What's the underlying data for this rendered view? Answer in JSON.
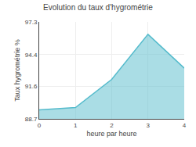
{
  "chart_data": {
    "type": "area",
    "title": "Evolution du taux d'hygrométrie",
    "xlabel": "heure par heure",
    "ylabel": "Taux hygrométrie %",
    "x": [
      0,
      1,
      2,
      3,
      4
    ],
    "values": [
      89.5,
      89.7,
      92.2,
      96.2,
      93.2
    ],
    "color": "#55bbcc",
    "xlim": [
      0,
      4
    ],
    "xticks": [
      0,
      1,
      2,
      3,
      4
    ],
    "ylim": [
      88.7,
      97.3
    ],
    "yticks": [
      88.7,
      91.6,
      94.4,
      97.3
    ],
    "grid": true
  }
}
